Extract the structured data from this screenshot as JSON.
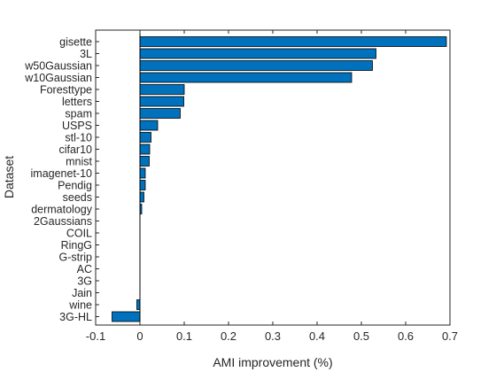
{
  "chart_data": {
    "type": "bar",
    "orientation": "horizontal",
    "title": "",
    "xlabel": "AMI improvement (%)",
    "ylabel": "Dataset",
    "xlim": [
      -0.1,
      0.7
    ],
    "xticks": [
      "-0.1",
      "0",
      "0.1",
      "0.2",
      "0.3",
      "0.4",
      "0.5",
      "0.6",
      "0.7"
    ],
    "categories": [
      "gisette",
      "3L",
      "w50Gaussian",
      "w10Gaussian",
      "Foresttype",
      "letters",
      "spam",
      "USPS",
      "stl-10",
      "cifar10",
      "mnist",
      "imagenet-10",
      "Pendig",
      "seeds",
      "dermatology",
      "2Gaussians",
      "COIL",
      "RingG",
      "G-strip",
      "AC",
      "3G",
      "Jain",
      "wine",
      "3G-HL"
    ],
    "values": [
      0.692,
      0.533,
      0.525,
      0.478,
      0.1,
      0.099,
      0.091,
      0.04,
      0.025,
      0.022,
      0.021,
      0.012,
      0.012,
      0.009,
      0.004,
      0.0,
      0.0,
      0.0,
      0.0,
      0.0,
      0.0,
      0.0,
      -0.007,
      -0.063
    ],
    "bar_color": "#0072BD",
    "grid": false,
    "legend": "none"
  }
}
